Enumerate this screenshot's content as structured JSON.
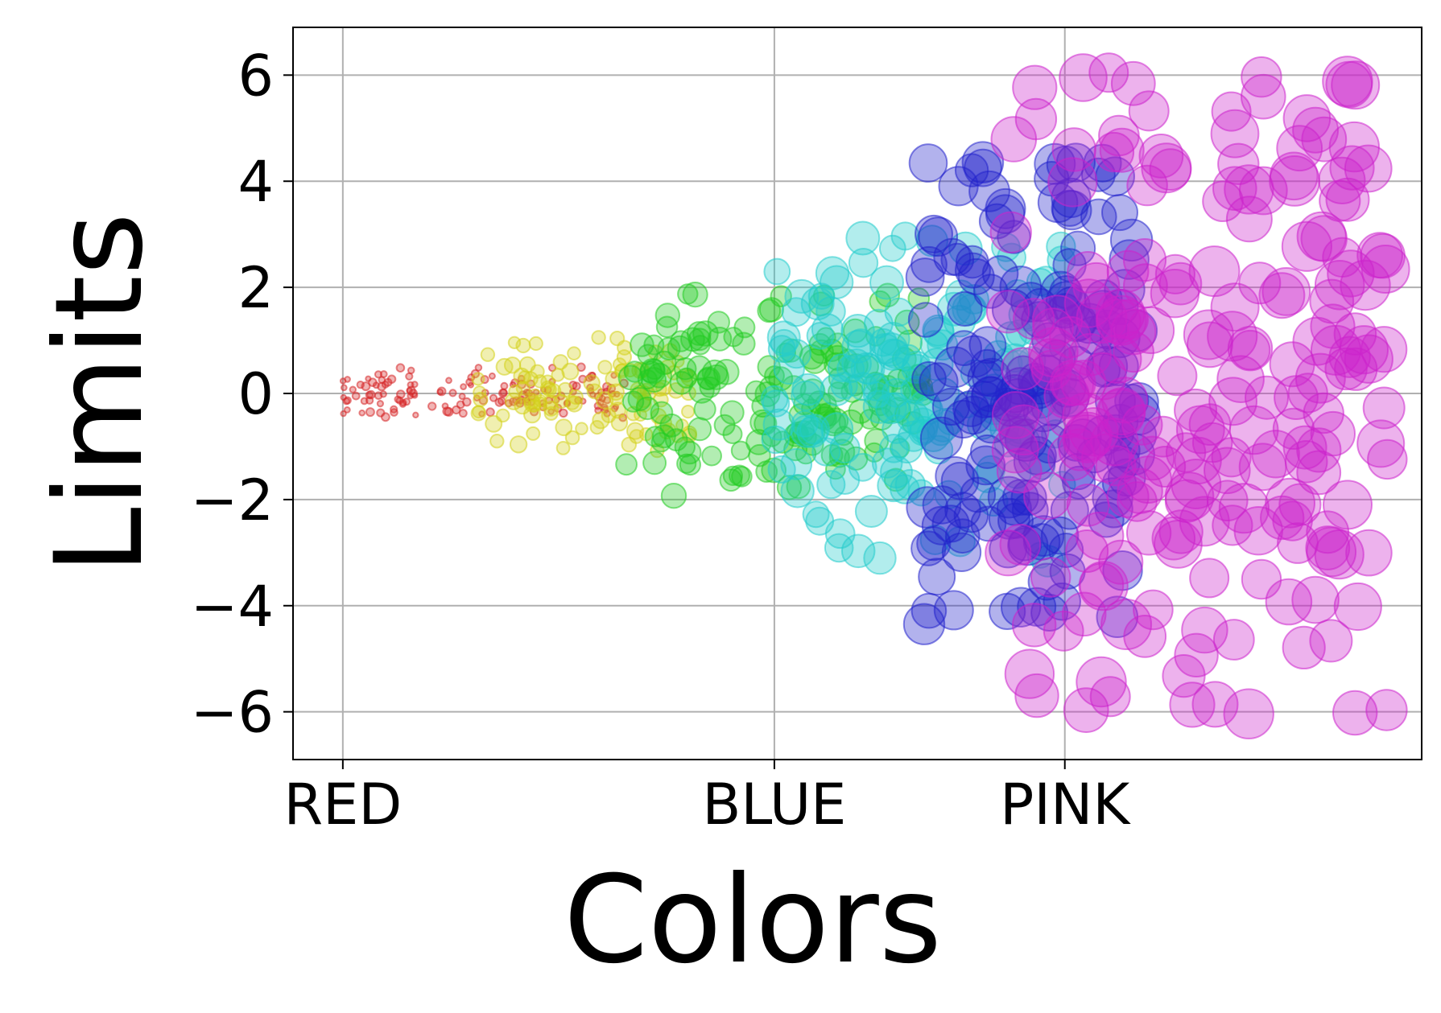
{
  "chart_data": {
    "type": "scatter",
    "title": "",
    "xlabel": "Colors",
    "ylabel": "Limits",
    "xlim": [
      -0.3,
      6.5
    ],
    "ylim": [
      -6.9,
      6.9
    ],
    "x_ticks": [
      {
        "value": 0,
        "label": "RED"
      },
      {
        "value": 2.6,
        "label": "BLUE"
      },
      {
        "value": 4.35,
        "label": "PINK"
      }
    ],
    "y_ticks": [
      {
        "value": 6,
        "label": "6"
      },
      {
        "value": 4,
        "label": "4"
      },
      {
        "value": 2,
        "label": "2"
      },
      {
        "value": 0,
        "label": "0"
      },
      {
        "value": -2,
        "label": "−2"
      },
      {
        "value": -4,
        "label": "−4"
      },
      {
        "value": -6,
        "label": "−6"
      }
    ],
    "grid": true,
    "legend": "none",
    "series": [
      {
        "color": "#d62728",
        "x_range": [
          0.0,
          1.7
        ],
        "y_spread": 0.5,
        "count": 150
      },
      {
        "color": "#d4d21c",
        "x_range": [
          0.8,
          2.1
        ],
        "y_spread": 1.1,
        "count": 110
      },
      {
        "color": "#22cc22",
        "x_range": [
          1.7,
          3.5
        ],
        "y_spread": 2.0,
        "count": 170
      },
      {
        "color": "#22cccc",
        "x_range": [
          2.6,
          4.35
        ],
        "y_spread": 3.2,
        "count": 160
      },
      {
        "color": "#2222cc",
        "x_range": [
          3.5,
          4.8
        ],
        "y_spread": 4.4,
        "count": 170
      },
      {
        "color": "#cc22cc",
        "x_range": [
          4.0,
          6.3
        ],
        "y_spread": 6.1,
        "count": 220
      }
    ]
  }
}
